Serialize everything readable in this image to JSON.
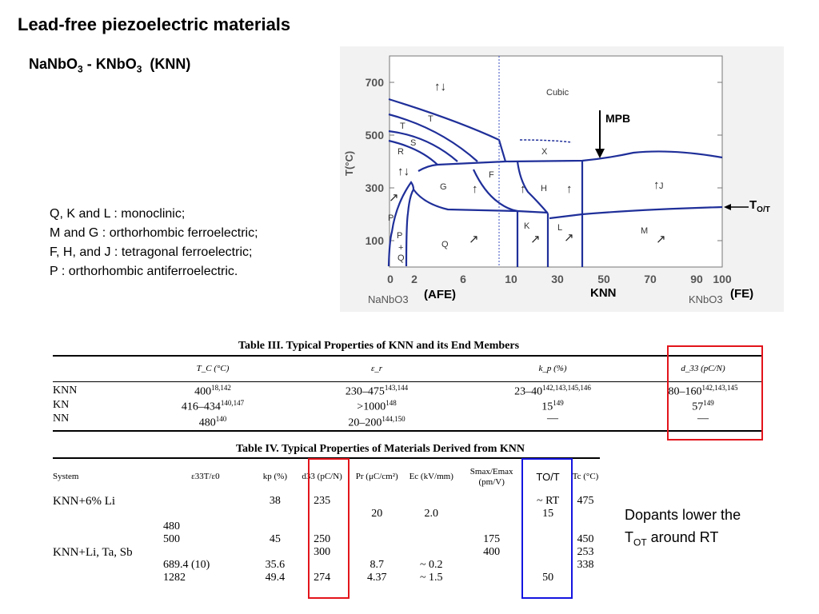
{
  "title": "Lead-free piezoelectric materials",
  "subtitle": {
    "a": "NaNbO",
    "a_sub": "3",
    "b": " - KNbO",
    "b_sub": "3",
    "c": "  (KNN)"
  },
  "notes": [
    "Q, K and L : monoclinic;",
    "M and G : orthorhombic ferroelectric;",
    "F, H, and J : tetragonal ferroelectric;",
    "P : orthorhombic antiferroelectric."
  ],
  "diagram": {
    "y_label": "T(°C)",
    "y_ticks": [
      "700",
      "500",
      "300",
      "100"
    ],
    "x_ticks": [
      "0",
      "2",
      "6",
      "10",
      "30",
      "50",
      "70",
      "90",
      "100"
    ],
    "x_left": "NaNbO3",
    "x_right": "KNbO3",
    "afe": "(AFE)",
    "fe": "(FE)",
    "knn": "KNN",
    "mpb": "MPB",
    "tot": "T",
    "tot_sub": "O/T",
    "regions": [
      "Cubic",
      "T",
      "T",
      "S",
      "R",
      "X",
      "G",
      "F",
      "H",
      "J",
      "K",
      "L",
      "M",
      "Q",
      "P",
      "P",
      "+",
      "Q"
    ],
    "line_color": "#1f2f99"
  },
  "table3": {
    "caption": "Table III.   Typical Properties of KNN and its End Members",
    "headers": [
      "",
      "T_C (°C)",
      "ε_r",
      "k_p (%)",
      "d_33 (pC/N)"
    ],
    "rows": [
      {
        "name": "KNN",
        "tc": "400",
        "tc_ref": "18,142",
        "er": "230–475",
        "er_ref": "143,144",
        "kp": "23–40",
        "kp_ref": "142,143,145,146",
        "d33": "80–160",
        "d33_ref": "142,143,145"
      },
      {
        "name": "KN",
        "tc": "416–434",
        "tc_ref": "140,147",
        "er": ">1000",
        "er_ref": "148",
        "kp": "15",
        "kp_ref": "149",
        "d33": "57",
        "d33_ref": "149"
      },
      {
        "name": "NN",
        "tc": "480",
        "tc_ref": "140",
        "er": "20–200",
        "er_ref": "144,150",
        "kp": "—",
        "kp_ref": "",
        "d33": "—",
        "d33_ref": ""
      }
    ]
  },
  "table4": {
    "caption": "Table IV.   Typical Properties of Materials Derived from KNN",
    "headers": [
      "System",
      "ε33T/ε0",
      "kp (%)",
      "d33 (pC/N)",
      "Pr (μC/cm²)",
      "Ec (kV/mm)",
      "Smax/Emax (pm/V)",
      "TO/T",
      "Tc (°C)"
    ],
    "rows": [
      [
        "KNN+6% Li",
        "",
        "38",
        "235",
        "",
        "",
        "",
        "~ RT",
        "475"
      ],
      [
        "",
        "",
        "",
        "",
        "20",
        "2.0",
        "",
        "15",
        ""
      ],
      [
        "",
        "480",
        "",
        "",
        "",
        "",
        "",
        "",
        ""
      ],
      [
        "",
        "500",
        "45",
        "250",
        "",
        "",
        "175",
        "",
        "450"
      ],
      [
        "KNN+Li, Ta, Sb",
        "",
        "",
        "300",
        "",
        "",
        "400",
        "",
        "253"
      ],
      [
        "",
        "689.4 (10)",
        "35.6",
        "",
        "8.7",
        "~ 0.2",
        "",
        "",
        "338"
      ],
      [
        "",
        "1282",
        "49.4",
        "274",
        "4.37",
        "~ 1.5",
        "",
        "50",
        ""
      ]
    ]
  },
  "dopants": {
    "line1": "Dopants lower the",
    "line2a": "T",
    "line2_sub": "OT",
    "line2b": " around RT"
  },
  "colors": {
    "red": "#e3141b",
    "blue": "#1414e0"
  }
}
